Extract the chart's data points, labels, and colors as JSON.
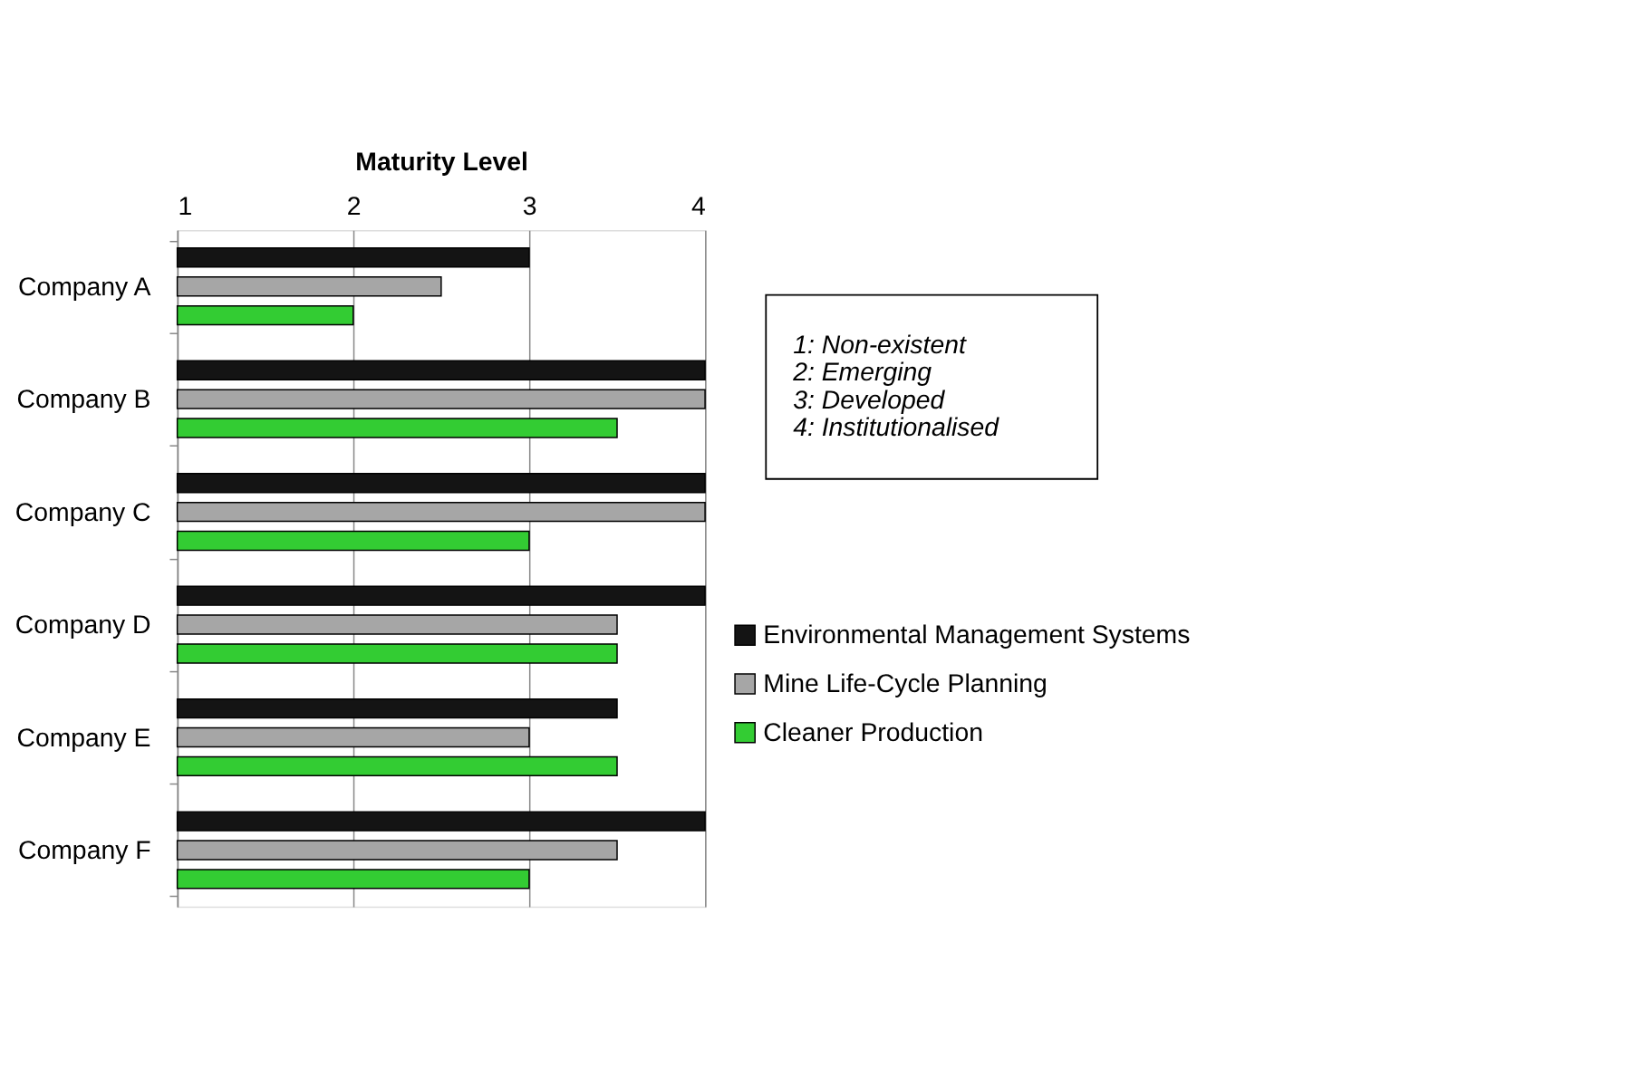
{
  "chart_data": {
    "type": "bar",
    "orientation": "horizontal",
    "xlabel": "Maturity Level",
    "categories": [
      "Company A",
      "Company B",
      "Company C",
      "Company D",
      "Company E",
      "Company F"
    ],
    "series": [
      {
        "name": "Environmental Management Systems",
        "color": "#141414",
        "values": [
          3,
          4,
          4,
          4,
          3.5,
          4
        ]
      },
      {
        "name": "Mine Life-Cycle Planning",
        "color": "#a6a6a6",
        "values": [
          2.5,
          4,
          4,
          3.5,
          3,
          3.5
        ]
      },
      {
        "name": "Cleaner Production",
        "color": "#33cc33",
        "values": [
          2,
          3.5,
          3,
          3.5,
          3.5,
          3
        ]
      }
    ],
    "xlim": [
      1,
      4
    ],
    "xticks": [
      1,
      2,
      3,
      4
    ],
    "grid": "x",
    "legend": "right",
    "annotations": [
      "1: Non-existent",
      "2: Emerging",
      "3: Developed",
      "4: Institutionalised"
    ]
  }
}
